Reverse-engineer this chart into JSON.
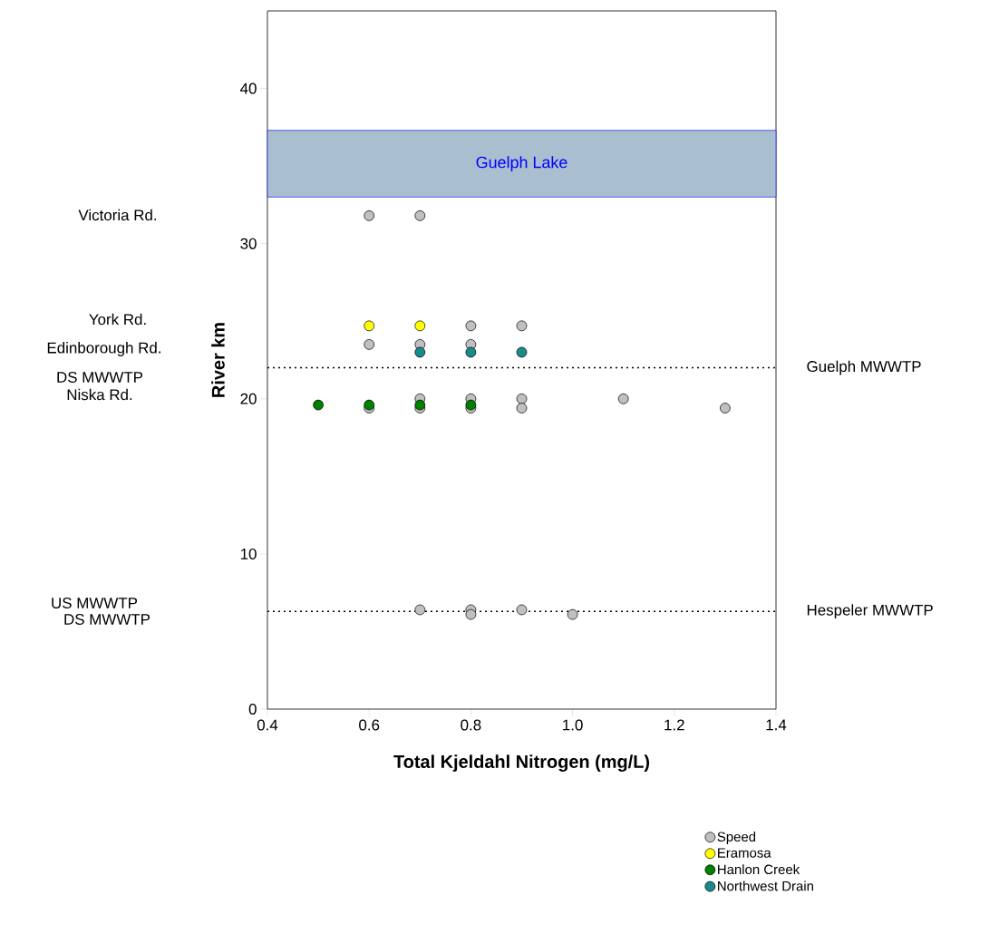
{
  "chart_data": {
    "type": "scatter",
    "xlabel": "Total Kjeldahl Nitrogen (mg/L)",
    "ylabel": "River km",
    "xlim": [
      0.4,
      1.4
    ],
    "ylim": [
      0,
      45
    ],
    "xticks": [
      0.4,
      0.6,
      0.8,
      {
        "value": 1.0,
        "label": "1.0"
      },
      1.2,
      1.4
    ],
    "yticks": [
      0,
      10,
      20,
      30,
      40
    ],
    "marker": "circle",
    "legend": "bottom right",
    "grid": false,
    "series": [
      {
        "name": "Speed",
        "color": "#c0c0c0",
        "x": [
          0.6,
          0.7,
          0.8,
          0.9,
          0.6,
          0.7,
          0.8,
          0.7,
          0.8,
          0.9,
          1.1,
          0.6,
          0.7,
          0.8,
          0.9,
          1.3,
          0.7,
          0.8,
          0.9,
          0.8,
          1.0
        ],
        "values": [
          31.8,
          31.8,
          24.7,
          24.7,
          23.5,
          23.5,
          23.5,
          20.0,
          20.0,
          20.0,
          20.0,
          19.4,
          19.4,
          19.4,
          19.4,
          19.4,
          6.4,
          6.4,
          6.4,
          6.1,
          6.1
        ]
      },
      {
        "name": "Eramosa",
        "color": "#ffff00",
        "x": [
          0.6,
          0.7
        ],
        "values": [
          24.7,
          24.7
        ]
      },
      {
        "name": "Hanlon Creek",
        "color": "#008000",
        "x": [
          0.5,
          0.6,
          0.7,
          0.8
        ],
        "values": [
          19.6,
          19.6,
          19.6,
          19.6
        ]
      },
      {
        "name": "Northwest Drain",
        "color": "#1a8a8a",
        "x": [
          0.7,
          0.8,
          0.9
        ],
        "values": [
          23.0,
          23.0,
          23.0
        ]
      }
    ],
    "ref_lines": [
      {
        "axis": "y",
        "value": 22,
        "label": "Guelph MWWTP",
        "line_style": "dotted"
      },
      {
        "axis": "y",
        "value": 6.3,
        "label": "Hespeler MWWTP",
        "line_style": "dotted"
      }
    ],
    "bands": [
      {
        "axis": "y",
        "from": 33,
        "to": 37.3,
        "label": "Guelph Lake",
        "color": "#a9bfcf"
      }
    ],
    "annotations": [
      "Victoria Rd.",
      "York Rd.",
      "Edinborough Rd.",
      "DS MWWTP",
      "Niska Rd.",
      "US MWWTP",
      "DS MWWTP"
    ]
  }
}
